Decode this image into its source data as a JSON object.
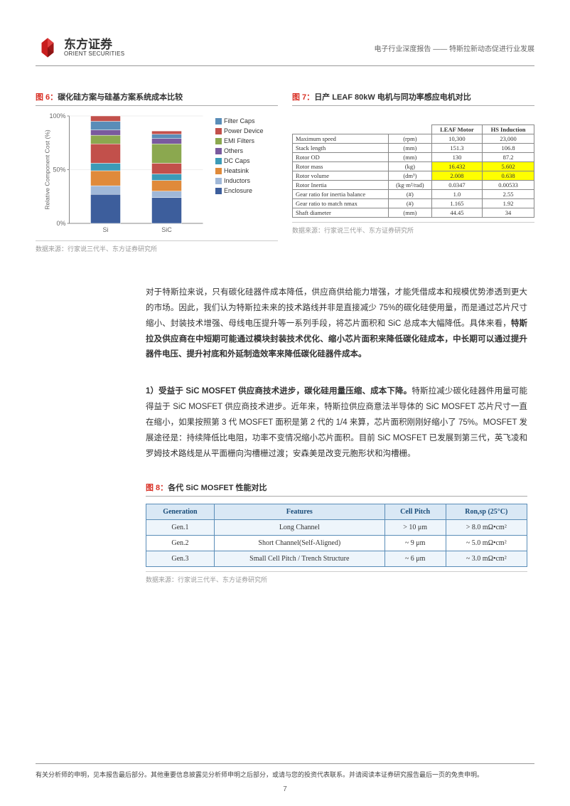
{
  "header": {
    "logo_cn": "东方证券",
    "logo_en": "ORIENT SECURITIES",
    "right": "电子行业深度报告 —— 特斯拉新动态促进行业发展"
  },
  "fig6": {
    "num": "图 6：",
    "title": "碳化硅方案与硅基方案系统成本比较",
    "source": "数据来源：行家说三代半、东方证券研究所",
    "chart": {
      "ylabel": "Relative Component Cost (%)",
      "ymax": 100,
      "ytick": 50,
      "categories": [
        "Si",
        "SiC"
      ],
      "legend": [
        {
          "label": "Filter Caps",
          "color": "#5a8db8"
        },
        {
          "label": "Power Device",
          "color": "#c2504b"
        },
        {
          "label": "EMI Filters",
          "color": "#8ba84f"
        },
        {
          "label": "Others",
          "color": "#7a5a9e"
        },
        {
          "label": "DC Caps",
          "color": "#3c9bb7"
        },
        {
          "label": "Heatsink",
          "color": "#e08a3a"
        },
        {
          "label": "Inductors",
          "color": "#a0b8d8"
        },
        {
          "label": "Enclosure",
          "color": "#3d5e9c"
        }
      ],
      "stacks": {
        "Si": [
          27,
          8,
          14,
          7,
          18,
          8,
          5,
          8,
          5
        ],
        "SiC": [
          24,
          6,
          10,
          6,
          10,
          18,
          5,
          4,
          3
        ]
      },
      "order_colors": [
        "#3d5e9c",
        "#a0b8d8",
        "#e08a3a",
        "#3c9bb7",
        "#c2504b",
        "#8ba84f",
        "#7a5a9e",
        "#5a8db8",
        "#c2504b"
      ]
    }
  },
  "fig7": {
    "num": "图 7：",
    "title": "日产 LEAF 80kW 电机与同功率感应电机对比",
    "source": "数据来源：行家说三代半、东方证券研究所",
    "headers": [
      "",
      "",
      "LEAF Motor",
      "HS Induction"
    ],
    "rows": [
      [
        "Maximum speed",
        "(rpm)",
        "10,300",
        "23,000",
        false
      ],
      [
        "Stack length",
        "(mm)",
        "151.3",
        "106.8",
        false
      ],
      [
        "Rotor OD",
        "(mm)",
        "130",
        "87.2",
        false
      ],
      [
        "Rotor mass",
        "(kg)",
        "16.432",
        "5.602",
        true
      ],
      [
        "Rotor volume",
        "(dm³)",
        "2.008",
        "0.638",
        true
      ],
      [
        "Rotor Inertia",
        "(kg·m²/rad)",
        "0.0347",
        "0.00533",
        false
      ],
      [
        "Gear ratio for inertia balance",
        "(#)",
        "1.0",
        "2.55",
        false
      ],
      [
        "Gear ratio to match nmax",
        "(#)",
        "1.165",
        "1.92",
        false
      ],
      [
        "Shaft diameter",
        "(mm)",
        "44.45",
        "34",
        false
      ]
    ]
  },
  "para1": {
    "t1": "对于特斯拉来说，只有碳化硅器件成本降低，供应商供给能力增强，才能凭借成本和规模优势渗透到更大的市场。因此，我们认为特斯拉未来的技术路线并非是直接减少 75%的碳化硅使用量，而是通过芯片尺寸缩小、封装技术增强、母线电压提升等一系列手段，将芯片面积和 SiC 总成本大幅降低。具体来看，",
    "t2": "特斯拉及供应商在中短期可能通过模块封装技术优化、缩小芯片面积来降低碳化硅成本，中长期可以通过提升器件电压、提升衬底和外延制造效率来降低碳化硅器件成本。"
  },
  "para2": {
    "t1": "1）受益于 SiC MOSFET 供应商技术进步，碳化硅用量压缩、成本下降。",
    "t2": "特斯拉减少碳化硅器件用量可能得益于 SiC MOSFET 供应商技术进步。近年来，特斯拉供应商意法半导体的 SiC MOSFET 芯片尺寸一直在缩小，如果按照第 3 代 MOSFET 面积是第 2 代的 1/4 来算，芯片面积刚刚好缩小了 75%。MOSFET 发展途径是：持续降低比电阻，功率不变情况缩小芯片面积。目前 SiC MOSFET 已发展到第三代，英飞凌和罗姆技术路线是从平面栅向沟槽栅过渡；安森美是改变元胞形状和沟槽栅。"
  },
  "fig8": {
    "num": "图 8：",
    "title": "各代 SiC MOSFET 性能对比",
    "source": "数据来源：行家说三代半、东方证券研究所",
    "headers": [
      "Generation",
      "Features",
      "Cell Pitch",
      "Ron,sp (25°C)"
    ],
    "rows": [
      [
        "Gen.1",
        "Long Channel",
        "> 10 μm",
        "> 8.0 mΩ•cm²"
      ],
      [
        "Gen.2",
        "Short Channel(Self-Aligned)",
        "~ 9 μm",
        "~ 5.0 mΩ•cm²"
      ],
      [
        "Gen.3",
        "Small Cell Pitch / Trench Structure",
        "~ 6 μm",
        "~ 3.0 mΩ•cm²"
      ]
    ]
  },
  "footer": "有关分析师的申明，见本报告最后部分。其他重要信息披露见分析师申明之后部分，或请与您的投资代表联系。并请阅读本证券研究报告最后一页的免责申明。",
  "page": "7"
}
